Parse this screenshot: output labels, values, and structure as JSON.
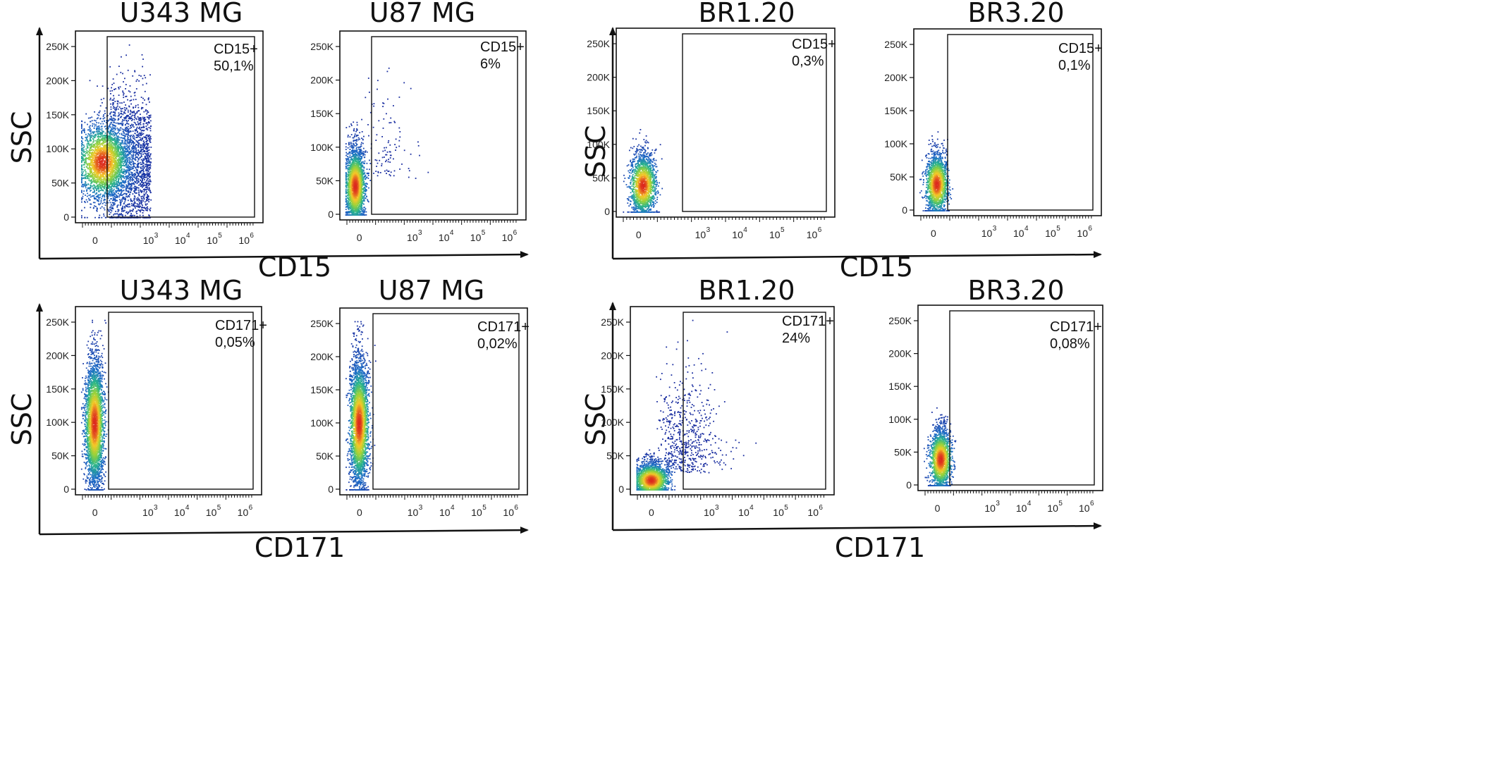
{
  "figure": {
    "groups": [
      {
        "id": "left",
        "row_axis_labels": [
          {
            "x": "CD15",
            "y": "SSC"
          },
          {
            "x": "CD171",
            "y": "SSC"
          }
        ]
      },
      {
        "id": "right",
        "row_axis_labels": [
          {
            "x": "CD15",
            "y": "SSC"
          },
          {
            "x": "CD171",
            "y": "SSC"
          }
        ]
      }
    ],
    "y_tick_labels": [
      "0",
      "50K",
      "100K",
      "150K",
      "200K",
      "250K"
    ],
    "x_tick_labels": [
      {
        "base": "0",
        "exp": ""
      },
      {
        "base": "10",
        "exp": "3"
      },
      {
        "base": "10",
        "exp": "4"
      },
      {
        "base": "10",
        "exp": "5"
      },
      {
        "base": "10",
        "exp": "6"
      }
    ]
  },
  "chart_data": [
    {
      "type": "scatter",
      "title": "U343 MG",
      "xlabel": "CD15",
      "ylabel": "SSC",
      "ylim": [
        0,
        262144
      ],
      "gate": {
        "label": "CD15+",
        "value": "50,1%"
      },
      "density": "high-spread"
    },
    {
      "type": "scatter",
      "title": "U87 MG",
      "xlabel": "CD15",
      "ylabel": "SSC",
      "ylim": [
        0,
        262144
      ],
      "gate": {
        "label": "CD15+",
        "value": "6%"
      },
      "density": "narrow-sparse-tail"
    },
    {
      "type": "scatter",
      "title": "BR1.20",
      "xlabel": "CD15",
      "ylabel": "SSC",
      "ylim": [
        0,
        262144
      ],
      "gate": {
        "label": "CD15+",
        "value": "0,3%"
      },
      "density": "narrow"
    },
    {
      "type": "scatter",
      "title": "BR3.20",
      "xlabel": "CD15",
      "ylabel": "SSC",
      "ylim": [
        0,
        262144
      ],
      "gate": {
        "label": "CD15+",
        "value": "0,1%"
      },
      "density": "narrow"
    },
    {
      "type": "scatter",
      "title": "U343 MG",
      "xlabel": "CD171",
      "ylabel": "SSC",
      "ylim": [
        0,
        262144
      ],
      "gate": {
        "label": "CD171+",
        "value": "0,05%"
      },
      "density": "narrow-tall"
    },
    {
      "type": "scatter",
      "title": "U87 MG",
      "xlabel": "CD171",
      "ylabel": "SSC",
      "ylim": [
        0,
        262144
      ],
      "gate": {
        "label": "CD171+",
        "value": "0,02%"
      },
      "density": "narrow-tall"
    },
    {
      "type": "scatter",
      "title": "BR1.20",
      "xlabel": "CD171",
      "ylabel": "SSC",
      "ylim": [
        0,
        262144
      ],
      "gate": {
        "label": "CD171+",
        "value": "24%"
      },
      "density": "spread-right"
    },
    {
      "type": "scatter",
      "title": "BR3.20",
      "xlabel": "CD171",
      "ylabel": "SSC",
      "ylim": [
        0,
        262144
      ],
      "gate": {
        "label": "CD171+",
        "value": "0,08%"
      },
      "density": "narrow"
    }
  ]
}
